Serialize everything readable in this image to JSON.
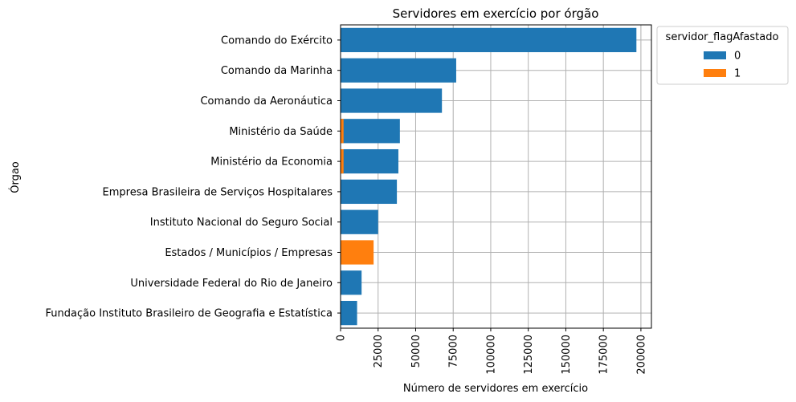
{
  "chart_data": {
    "type": "bar",
    "orientation": "horizontal",
    "title": "Servidores em exercício por órgão",
    "xlabel": "Número de servidores em exercício",
    "ylabel": "Órgao",
    "xlim": [
      0,
      207000
    ],
    "xticks": [
      0,
      25000,
      50000,
      75000,
      100000,
      125000,
      150000,
      175000,
      200000
    ],
    "xtick_labels": [
      "0",
      "25000",
      "50000",
      "75000",
      "100000",
      "125000",
      "150000",
      "175000",
      "200000"
    ],
    "grid": true,
    "categories": [
      "Comando do Exército",
      "Comando da Marinha",
      "Comando da Aeronáutica",
      "Ministério da Saúde",
      "Ministério da Economia",
      "Empresa Brasileira de Serviços Hospitalares",
      "Instituto Nacional do Seguro Social",
      "Estados / Municípios / Empresas",
      "Universidade Federal do Rio de Janeiro",
      "Fundação Instituto Brasileiro de Geografia e Estatística"
    ],
    "series": [
      {
        "name": "0",
        "color": "#1f77b4",
        "values": [
          197000,
          77000,
          67500,
          39500,
          38500,
          37500,
          25000,
          0,
          14000,
          11000
        ]
      },
      {
        "name": "1",
        "color": "#ff7f0e",
        "values": [
          0,
          0,
          0,
          2000,
          2000,
          0,
          0,
          22000,
          0,
          0
        ]
      }
    ],
    "legend": {
      "title": "servidor_flagAfastado",
      "placement": "outside-top-right",
      "entries": [
        "0",
        "1"
      ]
    }
  }
}
